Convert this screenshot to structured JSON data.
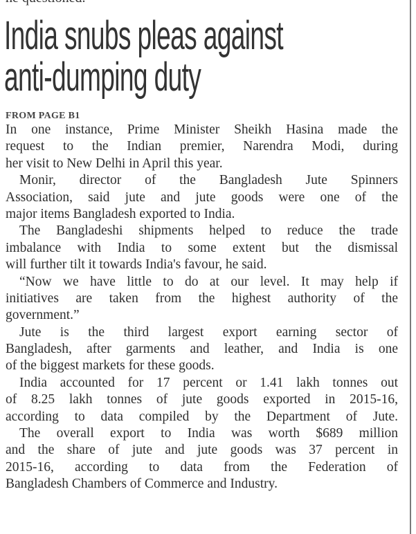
{
  "previous_text": "he questioned.",
  "headline": [
    "India snubs pleas against",
    "anti-dumping duty"
  ],
  "kicker": "FROM PAGE B1",
  "paragraphs": [
    [
      "In one instance, Prime Minister Sheikh Hasina made the",
      "request to the Indian premier, Narendra Modi, during",
      "her visit to New Delhi in April this year."
    ],
    [
      "Monir, director of the Bangladesh Jute Spinners",
      "Association, said jute and jute goods were one of the",
      "major items Bangladesh exported to India."
    ],
    [
      "The Bangladeshi shipments helped to reduce the trade",
      "imbalance with India to some extent but the dismissal",
      "will further tilt it towards India's favour, he said."
    ],
    [
      "“Now we have little to do at our level. It may help if",
      "initiatives are taken from the highest authority of the",
      "government.”"
    ],
    [
      "Jute is the third largest export earning sector of",
      "Bangladesh, after garments and leather, and India is one",
      "of the biggest markets for these goods."
    ],
    [
      "India accounted for 17 percent or 1.41 lakh tonnes out",
      "of 8.25 lakh tonnes of jute goods exported in 2015-16,",
      "according to data compiled by the Department of Jute."
    ],
    [
      "The overall export to India was worth $689 million",
      "and the share of jute and jute goods was 37 percent in",
      "2015-16, according to data from the Federation of",
      "Bangladesh Chambers of Commerce and Industry."
    ]
  ]
}
